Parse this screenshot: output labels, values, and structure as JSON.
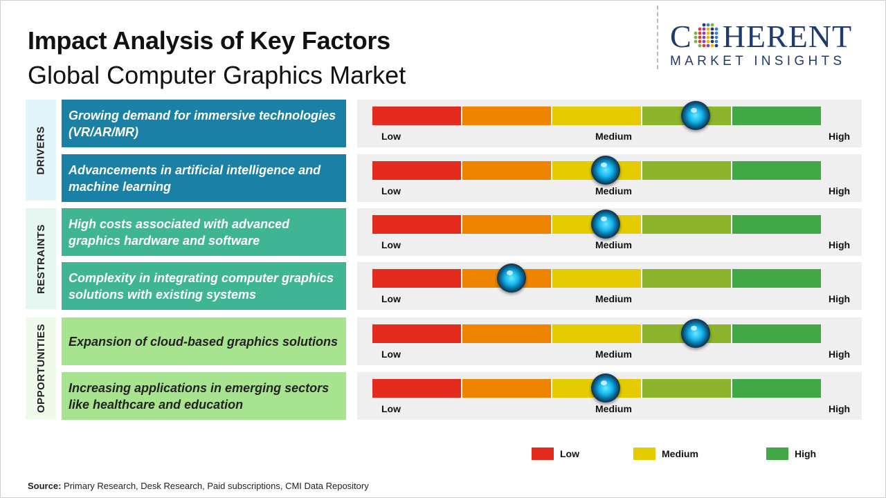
{
  "title": "Impact Analysis of Key Factors",
  "subtitle": "Global Computer Graphics Market",
  "logo": {
    "line1": "COHERENT",
    "line2": "MARKET INSIGHTS"
  },
  "colors": {
    "low": "#e32b1e",
    "low_mid": "#ee8400",
    "medium": "#e5cc00",
    "mid_high": "#8db42a",
    "high": "#41a747",
    "drivers": "#1a80a5",
    "restraints": "#3fb594",
    "opportunities": "#a8e38f"
  },
  "chart_data": {
    "type": "gauge",
    "scale_labels": {
      "low": "Low",
      "medium": "Medium",
      "high": "High"
    },
    "categories": [
      {
        "name": "DRIVERS",
        "color": "#1a80a5",
        "band": "#e3f3fa"
      },
      {
        "name": "RESTRAINTS",
        "color": "#3fb594",
        "band": "#e4f6ef"
      },
      {
        "name": "OPPORTUNITIES",
        "color": "#a8e38f",
        "band": "#effaea"
      }
    ],
    "factors": [
      {
        "category": "DRIVERS",
        "label": "Growing demand for immersive technologies (VR/AR/MR)",
        "impact": 0.72
      },
      {
        "category": "DRIVERS",
        "label": "Advancements in artificial intelligence and machine learning",
        "impact": 0.52
      },
      {
        "category": "RESTRAINTS",
        "label": "High costs associated with advanced graphics hardware and software",
        "impact": 0.52
      },
      {
        "category": "RESTRAINTS",
        "label": "Complexity in integrating computer graphics solutions with existing systems",
        "impact": 0.31
      },
      {
        "category": "OPPORTUNITIES",
        "label": "Expansion of cloud-based graphics solutions",
        "impact": 0.72
      },
      {
        "category": "OPPORTUNITIES",
        "label": "Increasing applications in emerging sectors like healthcare and education",
        "impact": 0.52
      }
    ],
    "legend": [
      {
        "label": "Low",
        "color": "#e32b1e"
      },
      {
        "label": "Medium",
        "color": "#e5cc00"
      },
      {
        "label": "High",
        "color": "#41a747"
      }
    ]
  },
  "source": {
    "label": "Source:",
    "text": " Primary Research, Desk Research, Paid subscriptions, CMI Data Repository"
  }
}
